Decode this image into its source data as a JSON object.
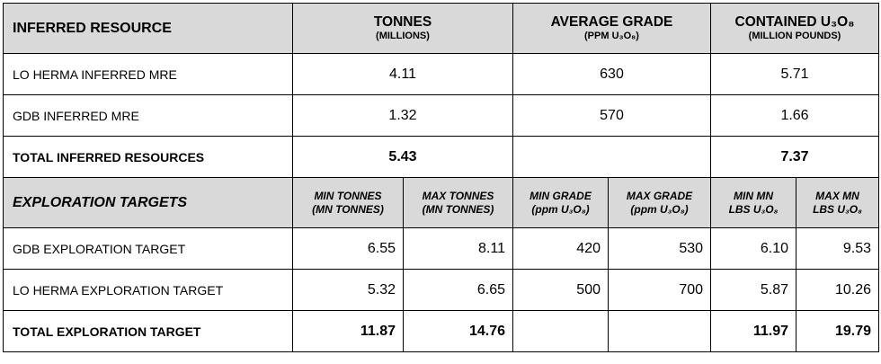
{
  "inferred": {
    "header": {
      "title": "INFERRED RESOURCE",
      "tonnes": "TONNES",
      "tonnes_sub": "(MILLIONS)",
      "grade": "AVERAGE GRADE",
      "grade_sub": "(PPM U₃O₈)",
      "contained": "CONTAINED U₃O₈",
      "contained_sub": "(MILLION POUNDS)"
    },
    "rows": [
      {
        "label": "LO HERMA INFERRED MRE",
        "tonnes": "4.11",
        "grade": "630",
        "contained": "5.71"
      },
      {
        "label": "GDB INFERRED MRE",
        "tonnes": "1.32",
        "grade": "570",
        "contained": "1.66"
      }
    ],
    "total": {
      "label": "TOTAL INFERRED RESOURCES",
      "tonnes": "5.43",
      "grade": "",
      "contained": "7.37"
    }
  },
  "exploration": {
    "header": {
      "title": "EXPLORATION TARGETS",
      "min_tonnes_1": "MIN TONNES",
      "min_tonnes_2": "(MN TONNES)",
      "max_tonnes_1": "MAX TONNES",
      "max_tonnes_2": "(MN TONNES)",
      "min_grade_1": "MIN GRADE",
      "min_grade_2": "(ppm U₃O₈)",
      "max_grade_1": "MAX GRADE",
      "max_grade_2": "(ppm U₃O₈)",
      "min_lbs_1": "MIN MN",
      "min_lbs_2": "LBS U₃O₈",
      "max_lbs_1": "MAX MN",
      "max_lbs_2": "LBS U₃O₈"
    },
    "rows": [
      {
        "label": "GDB EXPLORATION TARGET",
        "min_tonnes": "6.55",
        "max_tonnes": "8.11",
        "min_grade": "420",
        "max_grade": "530",
        "min_lbs": "6.10",
        "max_lbs": "9.53"
      },
      {
        "label": "LO HERMA EXPLORATION TARGET",
        "min_tonnes": "5.32",
        "max_tonnes": "6.65",
        "min_grade": "500",
        "max_grade": "700",
        "min_lbs": "5.87",
        "max_lbs": "10.26"
      }
    ],
    "total": {
      "label": "TOTAL EXPLORATION TARGET",
      "min_tonnes": "11.87",
      "max_tonnes": "14.76",
      "min_grade": "",
      "max_grade": "",
      "min_lbs": "11.97",
      "max_lbs": "19.79"
    }
  },
  "colors": {
    "header_bg": "#d9d9d9",
    "border": "#000000"
  }
}
